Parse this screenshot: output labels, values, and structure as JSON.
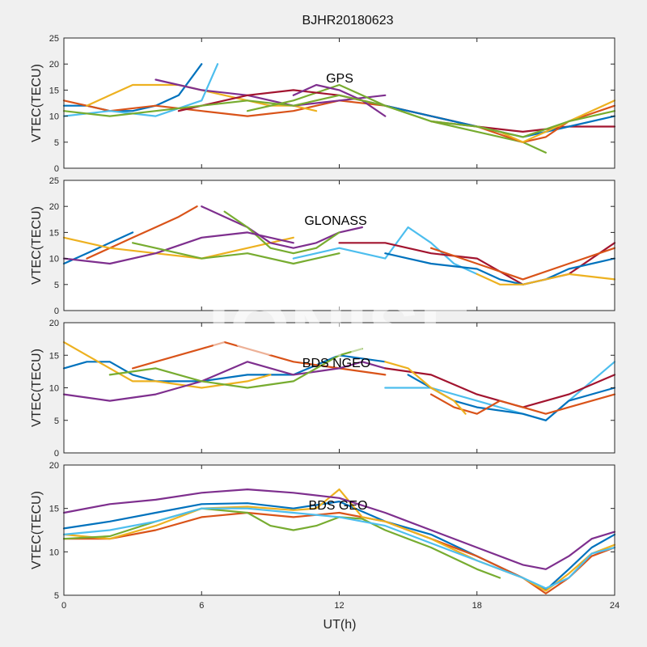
{
  "title": "BJHR20180623",
  "watermark": "IONISE",
  "xlabel": "UT(h)",
  "colors": [
    "#0072BD",
    "#D95319",
    "#EDB120",
    "#7E2F8E",
    "#77AC30",
    "#4DBEEE",
    "#A2142F"
  ],
  "chart_data": [
    {
      "type": "line",
      "annotation": "GPS",
      "ylabel": "VTEC(TECU)",
      "xlim": [
        0,
        24
      ],
      "ylim": [
        0,
        25
      ],
      "xticks": [
        0,
        6,
        12,
        18,
        24
      ],
      "yticks": [
        0,
        5,
        10,
        15,
        20,
        25
      ],
      "show_xticklabels": false,
      "series": [
        {
          "x": [
            0,
            1,
            2,
            3,
            4,
            5,
            6
          ],
          "y": [
            12,
            12,
            11,
            11,
            12,
            14,
            20
          ]
        },
        {
          "x": [
            0,
            1,
            2,
            4,
            6,
            8,
            10,
            12,
            14,
            16,
            17
          ],
          "y": [
            13,
            12,
            11,
            12,
            11,
            10,
            11,
            13,
            12,
            10,
            9
          ]
        },
        {
          "x": [
            1,
            2,
            3,
            4,
            5,
            6,
            7,
            8,
            9,
            10,
            11
          ],
          "y": [
            12,
            14,
            16,
            16,
            16,
            15,
            14,
            13,
            12,
            12,
            11
          ]
        },
        {
          "x": [
            4,
            5,
            6,
            8,
            10,
            12,
            14
          ],
          "y": [
            17,
            16,
            15,
            14,
            12,
            13,
            14
          ]
        },
        {
          "x": [
            8,
            10,
            12,
            13,
            14,
            16,
            18,
            20,
            21
          ],
          "y": [
            11,
            13,
            16,
            14,
            12,
            9,
            7,
            5,
            3
          ]
        },
        {
          "x": [
            0,
            2,
            4,
            6,
            6.7
          ],
          "y": [
            10,
            11,
            10,
            13,
            20
          ]
        },
        {
          "x": [
            5,
            6,
            8,
            10,
            12,
            13,
            14,
            16,
            18,
            20,
            22,
            24
          ],
          "y": [
            11,
            12,
            14,
            15,
            14,
            13,
            12,
            10,
            8,
            7,
            8,
            8
          ]
        },
        {
          "x": [
            14,
            16,
            18,
            20,
            22,
            24
          ],
          "y": [
            12,
            10,
            8,
            6,
            8,
            10
          ]
        },
        {
          "x": [
            16,
            18,
            20,
            21,
            22,
            24
          ],
          "y": [
            9,
            8,
            5,
            6,
            9,
            12
          ]
        },
        {
          "x": [
            18,
            19,
            20,
            22,
            24
          ],
          "y": [
            8,
            7,
            5,
            9,
            13
          ]
        },
        {
          "x": [
            10,
            11,
            12,
            13,
            14
          ],
          "y": [
            14,
            16,
            15,
            13,
            10
          ]
        },
        {
          "x": [
            0,
            2,
            4,
            6,
            8,
            10,
            12,
            14,
            16,
            18,
            20,
            22,
            24
          ],
          "y": [
            11,
            10,
            11,
            12,
            13,
            12,
            14,
            12,
            9,
            8,
            6,
            9,
            11
          ]
        }
      ]
    },
    {
      "type": "line",
      "annotation": "GLONASS",
      "ylabel": "VTEC(TECU)",
      "xlim": [
        0,
        24
      ],
      "ylim": [
        0,
        25
      ],
      "xticks": [
        0,
        6,
        12,
        18,
        24
      ],
      "yticks": [
        0,
        5,
        10,
        15,
        20,
        25
      ],
      "show_xticklabels": false,
      "series": [
        {
          "x": [
            0,
            1,
            2,
            3
          ],
          "y": [
            9,
            11,
            13,
            15
          ]
        },
        {
          "x": [
            1,
            2,
            3,
            4,
            5,
            5.8
          ],
          "y": [
            10,
            12,
            14,
            16,
            18,
            20
          ]
        },
        {
          "x": [
            0,
            2,
            4,
            6,
            8,
            10
          ],
          "y": [
            14,
            12,
            11,
            10,
            12,
            14
          ]
        },
        {
          "x": [
            6,
            7,
            8,
            9,
            10,
            11,
            12,
            13
          ],
          "y": [
            20,
            18,
            16,
            13,
            12,
            13,
            15,
            16
          ]
        },
        {
          "x": [
            7,
            8,
            9,
            10,
            11,
            12
          ],
          "y": [
            19,
            16,
            12,
            11,
            12,
            15
          ]
        },
        {
          "x": [
            10,
            12,
            14,
            15,
            16,
            17,
            18
          ],
          "y": [
            10,
            12,
            10,
            16,
            13,
            9,
            7
          ]
        },
        {
          "x": [
            12,
            14,
            16,
            18,
            20,
            22,
            24
          ],
          "y": [
            13,
            13,
            11,
            10,
            5,
            7,
            13
          ]
        },
        {
          "x": [
            14,
            16,
            18,
            19,
            20,
            21,
            22,
            24
          ],
          "y": [
            11,
            9,
            8,
            6,
            5,
            6,
            8,
            10
          ]
        },
        {
          "x": [
            16,
            18,
            20,
            22,
            24
          ],
          "y": [
            12,
            9,
            6,
            9,
            12
          ]
        },
        {
          "x": [
            18,
            19,
            20,
            21,
            22,
            24
          ],
          "y": [
            7,
            5,
            5,
            6,
            7,
            6
          ]
        },
        {
          "x": [
            0,
            2,
            4,
            6,
            8,
            10
          ],
          "y": [
            10,
            9,
            11,
            14,
            15,
            13
          ]
        },
        {
          "x": [
            3,
            4,
            6,
            8,
            10,
            12
          ],
          "y": [
            13,
            12,
            10,
            11,
            9,
            11
          ]
        }
      ]
    },
    {
      "type": "line",
      "annotation": "BDS NGEO",
      "ylabel": "VTEC(TECU)",
      "xlim": [
        0,
        24
      ],
      "ylim": [
        0,
        20
      ],
      "xticks": [
        0,
        6,
        12,
        18,
        24
      ],
      "yticks": [
        0,
        5,
        10,
        15,
        20
      ],
      "show_xticklabels": false,
      "series": [
        {
          "x": [
            0,
            1,
            2,
            3,
            4,
            6,
            8,
            10,
            12,
            14
          ],
          "y": [
            13,
            14,
            14,
            12,
            11,
            11,
            12,
            12,
            15,
            14
          ]
        },
        {
          "x": [
            3,
            4,
            6,
            7,
            8,
            10,
            12,
            14
          ],
          "y": [
            13,
            14,
            16,
            17,
            16,
            14,
            13,
            12
          ]
        },
        {
          "x": [
            0,
            1,
            2,
            3,
            4,
            6,
            8,
            9
          ],
          "y": [
            17,
            15,
            13,
            11,
            11,
            10,
            11,
            12
          ]
        },
        {
          "x": [
            0,
            2,
            4,
            5,
            6,
            8,
            10,
            12,
            13,
            14
          ],
          "y": [
            9,
            8,
            9,
            10,
            11,
            14,
            12,
            13,
            14,
            13
          ]
        },
        {
          "x": [
            2,
            4,
            6,
            8,
            10,
            11,
            12,
            13
          ],
          "y": [
            12,
            13,
            11,
            10,
            11,
            13,
            15,
            16
          ]
        },
        {
          "x": [
            14,
            16,
            18,
            20,
            21,
            22,
            24
          ],
          "y": [
            10,
            10,
            8,
            6,
            5,
            8,
            14
          ]
        },
        {
          "x": [
            14,
            16,
            18,
            20,
            22,
            24
          ],
          "y": [
            13,
            12,
            9,
            7,
            9,
            12
          ]
        },
        {
          "x": [
            15,
            16,
            17,
            18,
            20,
            21,
            22,
            24
          ],
          "y": [
            12,
            10,
            8,
            7,
            6,
            5,
            8,
            10
          ]
        },
        {
          "x": [
            16,
            17,
            18,
            19,
            20,
            21,
            22,
            24
          ],
          "y": [
            9,
            7,
            6,
            8,
            7,
            6,
            7,
            9
          ]
        },
        {
          "x": [
            14,
            15,
            16,
            17,
            17.5
          ],
          "y": [
            14,
            13,
            10,
            8,
            6
          ]
        }
      ]
    },
    {
      "type": "line",
      "annotation": "BDS GEO",
      "ylabel": "VTEC(TECU)",
      "xlim": [
        0,
        24
      ],
      "ylim": [
        5,
        20
      ],
      "xticks": [
        0,
        6,
        12,
        18,
        24
      ],
      "yticks": [
        5,
        10,
        15,
        20
      ],
      "show_xticklabels": true,
      "xticklabels": [
        "0",
        "6",
        "12",
        "18",
        "24"
      ],
      "series": [
        {
          "x": [
            0,
            2,
            4,
            6,
            8,
            10,
            12,
            14,
            16,
            18,
            20,
            21,
            22,
            23,
            24
          ],
          "y": [
            12.7,
            13.5,
            14.5,
            15.5,
            15.6,
            15.0,
            15.8,
            13.5,
            12.0,
            9.5,
            7.0,
            5.6,
            8.0,
            10.5,
            12.0
          ]
        },
        {
          "x": [
            0,
            2,
            4,
            6,
            8,
            10,
            12,
            14,
            16,
            18,
            20,
            21,
            22,
            23,
            24
          ],
          "y": [
            11.5,
            11.5,
            12.5,
            14.0,
            14.5,
            14.0,
            14.5,
            13.5,
            11.5,
            9.5,
            7.0,
            5.2,
            7.0,
            9.5,
            10.5
          ]
        },
        {
          "x": [
            0,
            2,
            4,
            6,
            8,
            10,
            11,
            12,
            13,
            14,
            16,
            18,
            20,
            21,
            22,
            23,
            24
          ],
          "y": [
            12.0,
            11.5,
            13.0,
            15.0,
            15.2,
            14.8,
            15.0,
            17.2,
            14.0,
            13.5,
            11.5,
            9.0,
            7.0,
            5.5,
            7.5,
            9.8,
            10.8
          ]
        },
        {
          "x": [
            0,
            2,
            4,
            6,
            8,
            10,
            12,
            14,
            16,
            18,
            20,
            21,
            22,
            23,
            24
          ],
          "y": [
            14.5,
            15.5,
            16.0,
            16.8,
            17.2,
            16.8,
            16.2,
            14.5,
            12.5,
            10.5,
            8.5,
            8.0,
            9.5,
            11.5,
            12.3
          ]
        },
        {
          "x": [
            0,
            2,
            4,
            6,
            8,
            9,
            10,
            11,
            12,
            13,
            14,
            16,
            18,
            19
          ],
          "y": [
            11.5,
            11.8,
            13.5,
            15.0,
            14.5,
            13.0,
            12.5,
            13.0,
            14.0,
            13.8,
            12.5,
            10.5,
            8.0,
            7.0
          ]
        },
        {
          "x": [
            0,
            2,
            4,
            6,
            8,
            10,
            12,
            14,
            16,
            18,
            20,
            21,
            22,
            23,
            24
          ],
          "y": [
            12.0,
            12.5,
            13.5,
            15.0,
            15.0,
            14.5,
            14.0,
            13.0,
            11.0,
            9.0,
            7.0,
            5.8,
            7.0,
            9.8,
            10.5
          ]
        }
      ]
    }
  ]
}
